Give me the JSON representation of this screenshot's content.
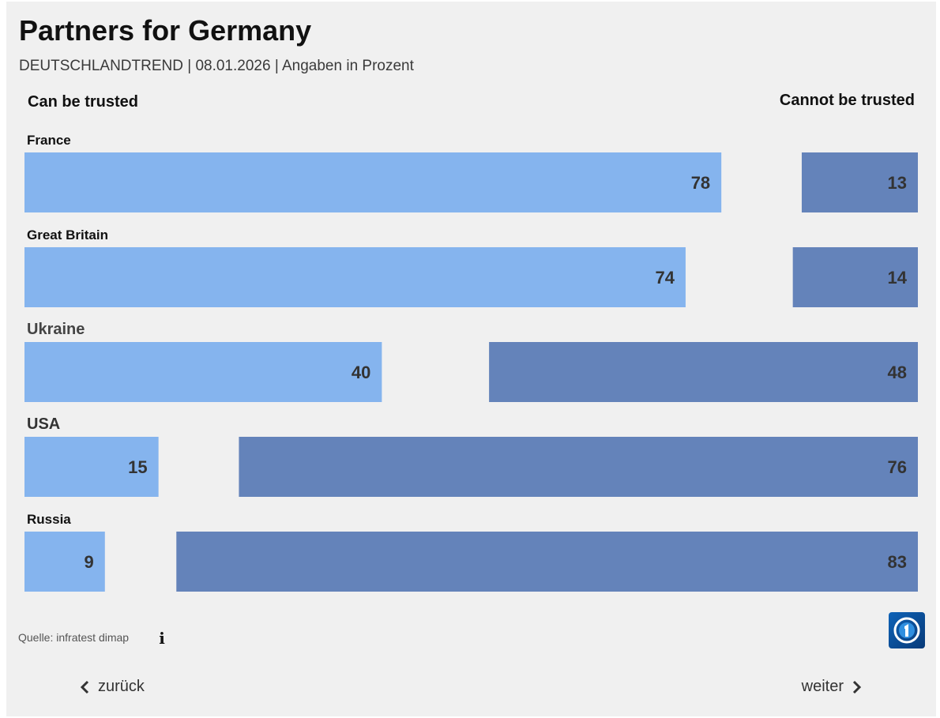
{
  "header": {
    "title": "Partners for Germany",
    "subtitle": "DEUTSCHLANDTREND | 08.01.2026 | Angaben in Prozent"
  },
  "chart_data": {
    "type": "bar",
    "orientation": "horizontal-diverging",
    "categories": [
      "France",
      "Great Britain",
      "Ukraine",
      "USA",
      "Russia"
    ],
    "series": [
      {
        "name": "Can be trusted",
        "values": [
          78,
          74,
          40,
          15,
          9
        ],
        "color": "#85b4ee"
      },
      {
        "name": "Cannot be trusted",
        "values": [
          13,
          14,
          48,
          76,
          83
        ],
        "color": "#6483ba"
      }
    ],
    "xlim": [
      0,
      100
    ],
    "grid": false,
    "legend_placement": "top-left and top-right"
  },
  "footer": {
    "source": "Quelle: infratest dimap",
    "info_icon": "info-icon",
    "logo": "ard-logo"
  },
  "nav": {
    "back_label": "zurück",
    "next_label": "weiter",
    "back_icon": "chevron-left-icon",
    "next_icon": "chevron-right-icon"
  }
}
